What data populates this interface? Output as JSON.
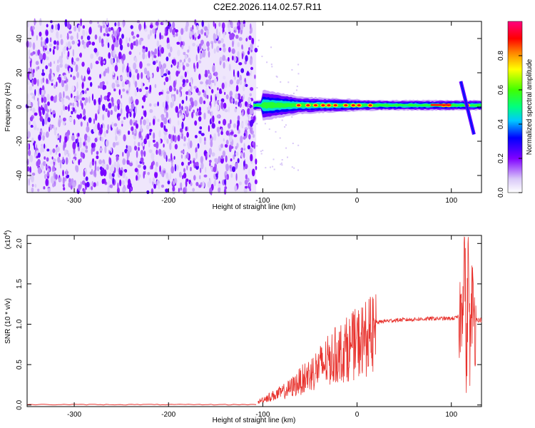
{
  "page_title": "C2E2.2026.114.02.57.R11",
  "chart_data": [
    {
      "type": "heatmap",
      "xlabel": "Height of straight line (km)",
      "ylabel": "Frequency (Hz)",
      "xlim": [
        -350,
        132
      ],
      "ylim": [
        -50,
        50
      ],
      "x_ticks": [
        -300,
        -200,
        -100,
        0,
        100
      ],
      "x_tick_labels": [
        "-300",
        "-200",
        "-100",
        "0",
        "100"
      ],
      "y_ticks": [
        -40,
        -20,
        0,
        20,
        40
      ],
      "y_tick_labels": [
        "-40",
        "-20",
        "0",
        "20",
        "40"
      ],
      "noise_region_x": [
        -350,
        -107
      ],
      "signal_band": {
        "x_start": -110,
        "x_end": 132,
        "center_frequency_hz": 1,
        "features": [
          {
            "x": -100,
            "half_width_hz": 9
          },
          {
            "x": -60,
            "half_width_hz": 5
          },
          {
            "x": -20,
            "half_width_hz": 4
          },
          {
            "x": 20,
            "half_width_hz": 3
          },
          {
            "x": 80,
            "half_width_hz": 3
          },
          {
            "x": 132,
            "half_width_hz": 3
          }
        ],
        "peaks_x": [
          -62,
          -52,
          -44,
          -36,
          -30,
          -23,
          -12,
          -4,
          2,
          14,
          92,
          97,
          117
        ]
      },
      "chirp_feature": {
        "x": [
          110,
          124
        ],
        "frequency_hz": [
          15,
          -16
        ]
      },
      "colorbar": {
        "label": "Normalized spectral amplitude",
        "range": [
          0,
          1
        ],
        "ticks": [
          0.0,
          0.2,
          0.4,
          0.6,
          0.8
        ],
        "tick_labels": [
          "0.0",
          "0.2",
          "0.4",
          "0.6",
          "0.8"
        ],
        "stops": [
          {
            "value": 0.0,
            "color": "#ffffff"
          },
          {
            "value": 0.08,
            "color": "#d9c8f8"
          },
          {
            "value": 0.2,
            "color": "#7f00ff"
          },
          {
            "value": 0.32,
            "color": "#0000ff"
          },
          {
            "value": 0.42,
            "color": "#00c8ff"
          },
          {
            "value": 0.5,
            "color": "#00ff80"
          },
          {
            "value": 0.6,
            "color": "#40ff00"
          },
          {
            "value": 0.72,
            "color": "#ffff00"
          },
          {
            "value": 0.82,
            "color": "#ff8000"
          },
          {
            "value": 0.9,
            "color": "#ff0000"
          },
          {
            "value": 1.0,
            "color": "#ff0080"
          }
        ]
      }
    },
    {
      "type": "line",
      "xlabel": "Height of straight line (km)",
      "ylabel": "SNR (10 * v/v)",
      "y_multiplier_label": "(x10",
      "y_multiplier_exponent": "4",
      "y_multiplier_close": ")",
      "xlim": [
        -350,
        132
      ],
      "ylim": [
        -0.02,
        2.1
      ],
      "x_ticks": [
        -300,
        -200,
        -100,
        0,
        100
      ],
      "x_tick_labels": [
        "-300",
        "-200",
        "-100",
        "0",
        "100"
      ],
      "y_ticks": [
        0.0,
        0.5,
        1.0,
        1.5,
        2.0
      ],
      "y_tick_labels": [
        "0.0",
        "0.5",
        "1.0",
        "1.5",
        "2.0"
      ],
      "color": "#e8332e",
      "series": [
        {
          "x": [
            -350,
            -300,
            -200,
            -110,
            -100,
            -90,
            -80,
            -70,
            -60,
            -50,
            -40,
            -30,
            -20,
            -10,
            0,
            10,
            20,
            30,
            40,
            60,
            80,
            100,
            105,
            110,
            112,
            114,
            116,
            118,
            120,
            122,
            125,
            132
          ],
          "y": [
            0.0,
            0.0,
            0.0,
            0.0,
            0.08,
            0.13,
            0.18,
            0.25,
            0.35,
            0.45,
            0.55,
            0.65,
            0.75,
            0.82,
            0.9,
            0.98,
            1.02,
            1.04,
            1.05,
            1.06,
            1.07,
            1.07,
            1.08,
            1.1,
            1.45,
            2.08,
            0.35,
            1.95,
            0.6,
            1.3,
            1.06,
            1.05
          ]
        }
      ]
    }
  ]
}
